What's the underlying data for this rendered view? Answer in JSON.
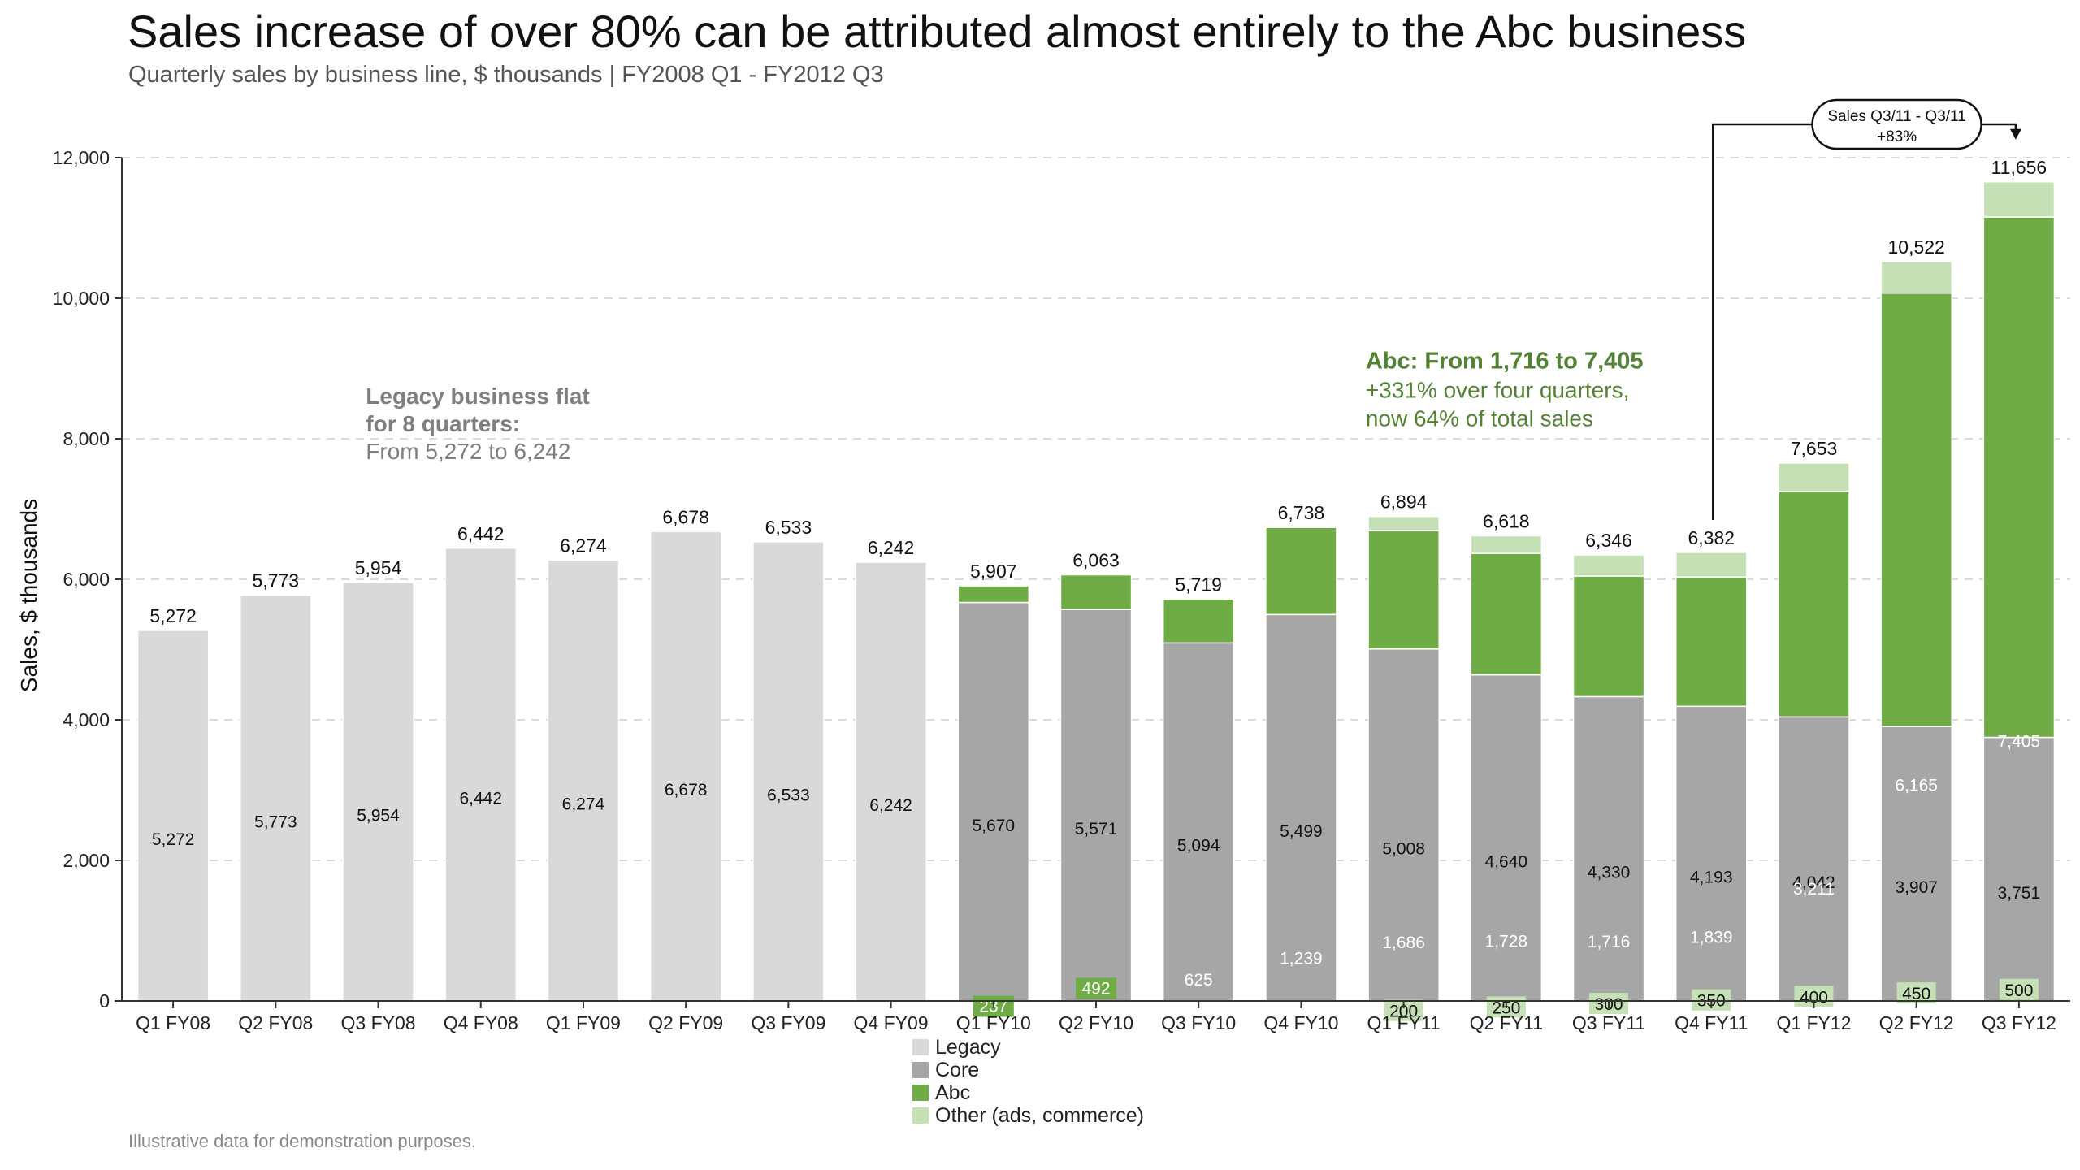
{
  "chart_data": {
    "type": "bar",
    "stacked": true,
    "title": "Sales increase of over 80% can be attributed almost entirely to the Abc business",
    "subtitle": "Quarterly sales by business line, $ thousands | FY2008 Q1 - FY2012 Q3",
    "ylabel": "Sales, $ thousands",
    "xlabel": "",
    "ylim": [
      0,
      12000
    ],
    "yticks": [
      0,
      2000,
      4000,
      6000,
      8000,
      10000,
      12000
    ],
    "ytick_labels": [
      "0",
      "2,000",
      "4,000",
      "6,000",
      "8,000",
      "10,000",
      "12,000"
    ],
    "grid": "horizontal dashed",
    "legend_position": "bottom-center",
    "categories": [
      "Q1 FY08",
      "Q2 FY08",
      "Q3 FY08",
      "Q4 FY08",
      "Q1 FY09",
      "Q2 FY09",
      "Q3 FY09",
      "Q4 FY09",
      "Q1 FY10",
      "Q2 FY10",
      "Q3 FY10",
      "Q4 FY10",
      "Q1 FY11",
      "Q2 FY11",
      "Q3 FY11",
      "Q4 FY11",
      "Q1 FY12",
      "Q2 FY12",
      "Q3 FY12"
    ],
    "series": [
      {
        "name": "Legacy",
        "color": "#d9d9d9",
        "values": [
          5272,
          5773,
          5954,
          6442,
          6274,
          6678,
          6533,
          6242,
          0,
          0,
          0,
          0,
          0,
          0,
          0,
          0,
          0,
          0,
          0
        ]
      },
      {
        "name": "Core",
        "color": "#a6a6a6",
        "values": [
          0,
          0,
          0,
          0,
          0,
          0,
          0,
          0,
          5670,
          5571,
          5094,
          5499,
          5008,
          4640,
          4330,
          4193,
          4042,
          3907,
          3751
        ]
      },
      {
        "name": "Abc",
        "color": "#6fac46",
        "values": [
          0,
          0,
          0,
          0,
          0,
          0,
          0,
          0,
          237,
          492,
          625,
          1239,
          1686,
          1728,
          1716,
          1839,
          3211,
          6165,
          7405
        ]
      },
      {
        "name": "Other (ads, commerce)",
        "color": "#c5e0b4",
        "values": [
          0,
          0,
          0,
          0,
          0,
          0,
          0,
          0,
          0,
          0,
          0,
          0,
          200,
          250,
          300,
          350,
          400,
          450,
          500
        ]
      }
    ],
    "series_label_colors": [
      "#111111",
      "#111111",
      "#ffffff",
      "#111111"
    ],
    "totals": [
      5272,
      5773,
      5954,
      6442,
      6274,
      6678,
      6533,
      6242,
      5907,
      6063,
      5719,
      6738,
      6894,
      6618,
      6346,
      6382,
      7653,
      10522,
      11656
    ],
    "annotations": {
      "legacy": {
        "line1": "Legacy business flat",
        "line2": "for 8 quarters:",
        "line3": "From 5,272 to 6,242",
        "color": "#7f7f7f",
        "anchor_x": 2.3,
        "anchor_y": 8500
      },
      "abc": {
        "line1": "Abc: From 1,716 to 7,405",
        "line2": "+331% over four  quarters,",
        "line3": "now 64% of total sales",
        "color": "#548235",
        "anchor_x": 12.05,
        "anchor_y": 9000
      },
      "growth": {
        "line1": "Sales Q3/11 - Q3/11",
        "line2": "+83%",
        "from_index": 15,
        "to_index": 18
      }
    },
    "footnote": "Illustrative data for demonstration purposes."
  }
}
